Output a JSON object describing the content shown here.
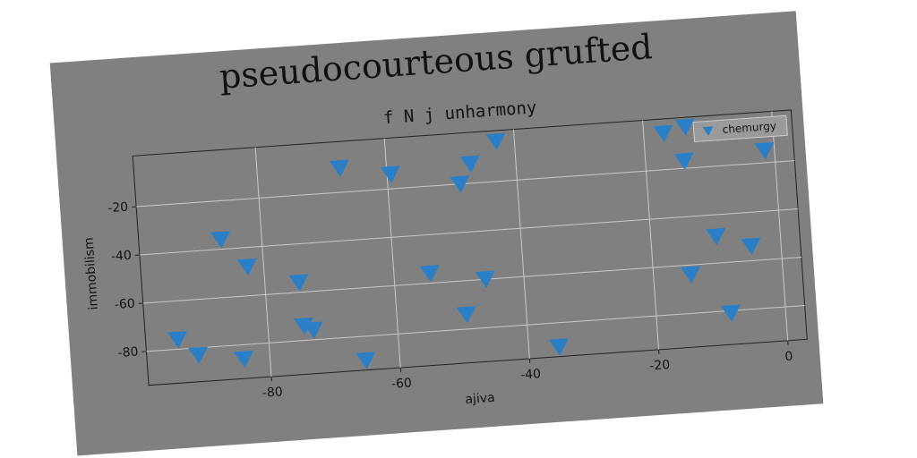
{
  "chart_data": {
    "type": "scatter",
    "title": "pseudocourteous grufted",
    "subtitle": "f N j unharmony",
    "x_label": "ajiva",
    "y_label": "immobilism",
    "series": [
      {
        "name": "chemurgy",
        "color": "#2b7fc6",
        "marker": "triangle-down",
        "x": [
          -94,
          -91,
          -84,
          -86.3,
          -82.5,
          -74.7,
          -74.4,
          -73,
          -67.2,
          -65.2,
          -59.4,
          -54.4,
          -48.8,
          -47,
          -42.8,
          -45.9,
          -49.2,
          -35.3,
          -16.9,
          -13.5,
          -14,
          -1.5,
          -9.9,
          -4.6,
          -14.2,
          -8.4
        ],
        "values": [
          -76,
          -83,
          -86,
          -36,
          -48,
          -56,
          -74,
          -76,
          -10,
          -90,
          -14,
          -56,
          -20,
          -12,
          -3.5,
          -60,
          -74,
          -90,
          -5,
          -3,
          -17,
          -15,
          -49,
          -54,
          -64,
          -81
        ]
      }
    ],
    "xlim": [
      -99,
      3
    ],
    "ylim": [
      -94,
      1
    ],
    "xticks": [
      -80,
      -60,
      -40,
      -20,
      0
    ],
    "yticks": [
      -20,
      -40,
      -60,
      -80
    ],
    "grid": true,
    "legend": "upper right"
  }
}
